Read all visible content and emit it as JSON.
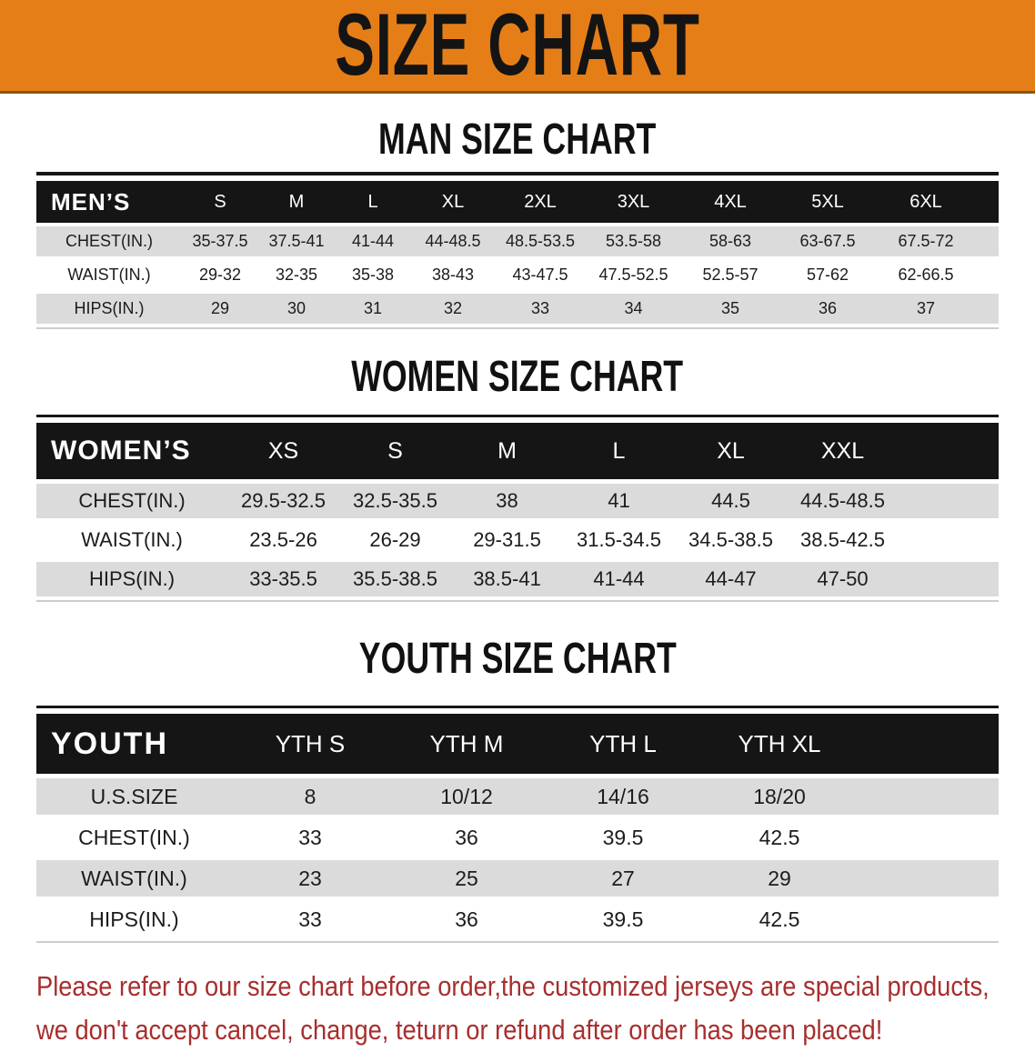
{
  "banner": {
    "title": "SIZE CHART"
  },
  "colors": {
    "banner_bg": "#E67E18",
    "header_bg": "#151515",
    "row_shade": "#DBDBDB",
    "note_red": "#A82E2E"
  },
  "sections": {
    "men": {
      "title": "MAN SIZE CHART",
      "header": [
        "MEN’S",
        "S",
        "M",
        "L",
        "XL",
        "2XL",
        "3XL",
        "4XL",
        "5XL",
        "6XL"
      ],
      "rows": [
        {
          "label": "CHEST(IN.)",
          "values": [
            "35-37.5",
            "37.5-41",
            "41-44",
            "44-48.5",
            "48.5-53.5",
            "53.5-58",
            "58-63",
            "63-67.5",
            "67.5-72"
          ]
        },
        {
          "label": "WAIST(IN.)",
          "values": [
            "29-32",
            "32-35",
            "35-38",
            "38-43",
            "43-47.5",
            "47.5-52.5",
            "52.5-57",
            "57-62",
            "62-66.5"
          ]
        },
        {
          "label": "HIPS(IN.)",
          "values": [
            "29",
            "30",
            "31",
            "32",
            "33",
            "34",
            "35",
            "36",
            "37"
          ]
        }
      ]
    },
    "women": {
      "title": "WOMEN SIZE CHART",
      "header": [
        "WOMEN’S",
        "XS",
        "S",
        "M",
        "L",
        "XL",
        "XXL"
      ],
      "rows": [
        {
          "label": "CHEST(IN.)",
          "values": [
            "29.5-32.5",
            "32.5-35.5",
            "38",
            "41",
            "44.5",
            "44.5-48.5"
          ]
        },
        {
          "label": "WAIST(IN.)",
          "values": [
            "23.5-26",
            "26-29",
            "29-31.5",
            "31.5-34.5",
            "34.5-38.5",
            "38.5-42.5"
          ]
        },
        {
          "label": "HIPS(IN.)",
          "values": [
            "33-35.5",
            "35.5-38.5",
            "38.5-41",
            "41-44",
            "44-47",
            "47-50"
          ]
        }
      ]
    },
    "youth": {
      "title": "YOUTH SIZE CHART",
      "header": [
        "YOUTH",
        "YTH S",
        "YTH M",
        "YTH L",
        "YTH XL"
      ],
      "rows": [
        {
          "label": "U.S.SIZE",
          "values": [
            "8",
            "10/12",
            "14/16",
            "18/20"
          ]
        },
        {
          "label": "CHEST(IN.)",
          "values": [
            "33",
            "36",
            "39.5",
            "42.5"
          ]
        },
        {
          "label": "WAIST(IN.)",
          "values": [
            "23",
            "25",
            "27",
            "29"
          ]
        },
        {
          "label": "HIPS(IN.)",
          "values": [
            "33",
            "36",
            "39.5",
            "42.5"
          ]
        }
      ]
    }
  },
  "footer": {
    "line1": "Please refer to our size chart before order,the customized jerseys are special products,",
    "line2": "we don't accept cancel, change, teturn or refund after order has been placed!"
  }
}
